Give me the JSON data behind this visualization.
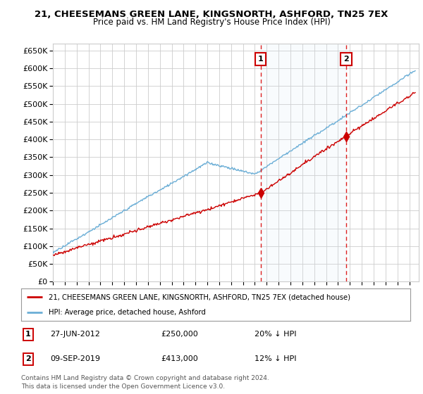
{
  "title": "21, CHEESEMANS GREEN LANE, KINGSNORTH, ASHFORD, TN25 7EX",
  "subtitle": "Price paid vs. HM Land Registry's House Price Index (HPI)",
  "legend_property": "21, CHEESEMANS GREEN LANE, KINGSNORTH, ASHFORD, TN25 7EX (detached house)",
  "legend_hpi": "HPI: Average price, detached house, Ashford",
  "transactions": [
    {
      "num": 1,
      "date": "27-JUN-2012",
      "price": 250000,
      "note": "20% ↓ HPI",
      "year": 2012.49
    },
    {
      "num": 2,
      "date": "09-SEP-2019",
      "price": 413000,
      "note": "12% ↓ HPI",
      "year": 2019.69
    }
  ],
  "footnote": "Contains HM Land Registry data © Crown copyright and database right 2024.\nThis data is licensed under the Open Government Licence v3.0.",
  "ylim": [
    0,
    670000
  ],
  "yticks": [
    0,
    50000,
    100000,
    150000,
    200000,
    250000,
    300000,
    350000,
    400000,
    450000,
    500000,
    550000,
    600000,
    650000
  ],
  "background_color": "#ffffff",
  "grid_color": "#cccccc",
  "hpi_color": "#6baed6",
  "hpi_fill_color": "#d6e8f5",
  "property_color": "#cc0000",
  "dashed_line_color": "#dd2222",
  "marker_box_color": "#cc0000",
  "xmin": 1995.0,
  "xmax": 2025.8
}
